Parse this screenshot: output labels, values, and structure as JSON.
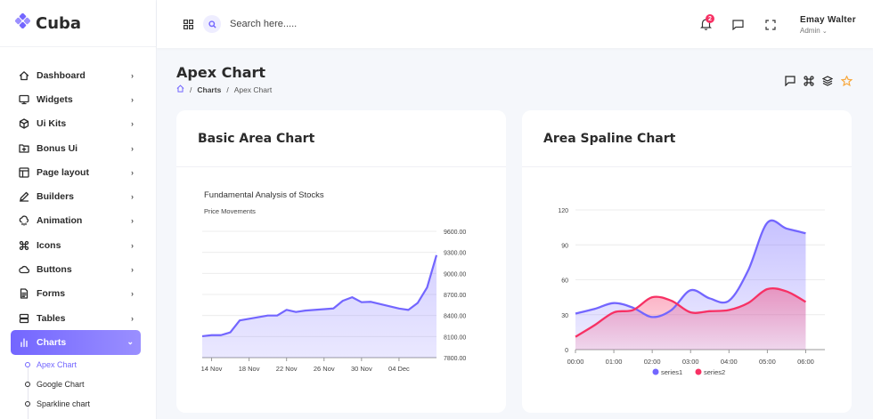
{
  "app": {
    "name": "Cuba"
  },
  "sidebar": {
    "items": [
      {
        "label": "Dashboard",
        "icon": "home-icon"
      },
      {
        "label": "Widgets",
        "icon": "monitor-icon"
      },
      {
        "label": "Ui Kits",
        "icon": "box-icon"
      },
      {
        "label": "Bonus Ui",
        "icon": "folder-plus-icon"
      },
      {
        "label": "Page layout",
        "icon": "layout-icon"
      },
      {
        "label": "Builders",
        "icon": "edit-icon"
      },
      {
        "label": "Animation",
        "icon": "cloud-drizzle-icon"
      },
      {
        "label": "Icons",
        "icon": "command-icon"
      },
      {
        "label": "Buttons",
        "icon": "cloud-icon"
      },
      {
        "label": "Forms",
        "icon": "file-text-icon"
      },
      {
        "label": "Tables",
        "icon": "server-icon"
      },
      {
        "label": "Charts",
        "icon": "bar-chart-icon"
      }
    ],
    "active_index": 11,
    "submenu": [
      {
        "label": "Apex Chart"
      },
      {
        "label": "Google Chart"
      },
      {
        "label": "Sparkline chart"
      }
    ]
  },
  "header": {
    "search_placeholder": "Search here.....",
    "notification_count": "2",
    "user_name": "Emay Walter",
    "user_role": "Admin"
  },
  "page": {
    "title": "Apex Chart",
    "breadcrumb": [
      "Charts",
      "Apex Chart"
    ]
  },
  "cards": {
    "basic_area": {
      "title": "Basic Area Chart"
    },
    "area_spaline": {
      "title": "Area Spaline Chart"
    }
  },
  "colors": {
    "accent": "#7366ff",
    "series2": "#f73164",
    "badge": "#f73164"
  },
  "chart_data": [
    {
      "type": "area",
      "title": "Fundamental Analysis of Stocks",
      "subtitle": "Price Movements",
      "x_tick_labels": [
        "14 Nov",
        "18 Nov",
        "22 Nov",
        "26 Nov",
        "30 Nov",
        "04 Dec"
      ],
      "y_tick_labels": [
        "9600.00",
        "9300.00",
        "9000.00",
        "8700.00",
        "8400.00",
        "8100.00",
        "7800.00"
      ],
      "ylim": [
        7800,
        9600
      ],
      "y_axis_position": "right",
      "grid": true,
      "x": [
        "2017-11-13",
        "2017-11-14",
        "2017-11-15",
        "2017-11-16",
        "2017-11-17",
        "2017-11-20",
        "2017-11-21",
        "2017-11-22",
        "2017-11-23",
        "2017-11-24",
        "2017-11-27",
        "2017-11-28",
        "2017-11-29",
        "2017-11-30",
        "2017-12-01",
        "2017-12-04",
        "2017-12-05",
        "2017-12-06",
        "2017-12-07",
        "2017-12-08"
      ],
      "values": [
        8105,
        8120,
        8120,
        8160,
        8330,
        8400,
        8400,
        8480,
        8450,
        8470,
        8500,
        8610,
        8660,
        8590,
        8595,
        8500,
        8480,
        8580,
        8800,
        9260
      ],
      "color": "#7366ff"
    },
    {
      "type": "area",
      "x_tick_labels": [
        "00:00",
        "01:00",
        "02:00",
        "03:00",
        "04:00",
        "05:00",
        "06:00"
      ],
      "y_tick_labels": [
        "120",
        "90",
        "60",
        "30",
        "0"
      ],
      "ylim": [
        0,
        120
      ],
      "grid": true,
      "legend": "bottom",
      "series": [
        {
          "name": "series1",
          "color": "#7366ff",
          "x": [
            0,
            0.5,
            1,
            1.5,
            2,
            2.5,
            3,
            3.5,
            4,
            4.5,
            5,
            5.5,
            6
          ],
          "values": [
            31,
            35,
            40,
            36,
            28,
            34,
            51,
            44,
            42,
            68,
            109,
            104,
            100
          ]
        },
        {
          "name": "series2",
          "color": "#f73164",
          "x": [
            0,
            0.5,
            1,
            1.5,
            2,
            2.5,
            3,
            3.5,
            4,
            4.5,
            5,
            5.5,
            6
          ],
          "values": [
            11,
            21,
            32,
            34,
            45,
            42,
            32,
            33,
            34,
            40,
            52,
            50,
            41
          ]
        }
      ]
    }
  ]
}
